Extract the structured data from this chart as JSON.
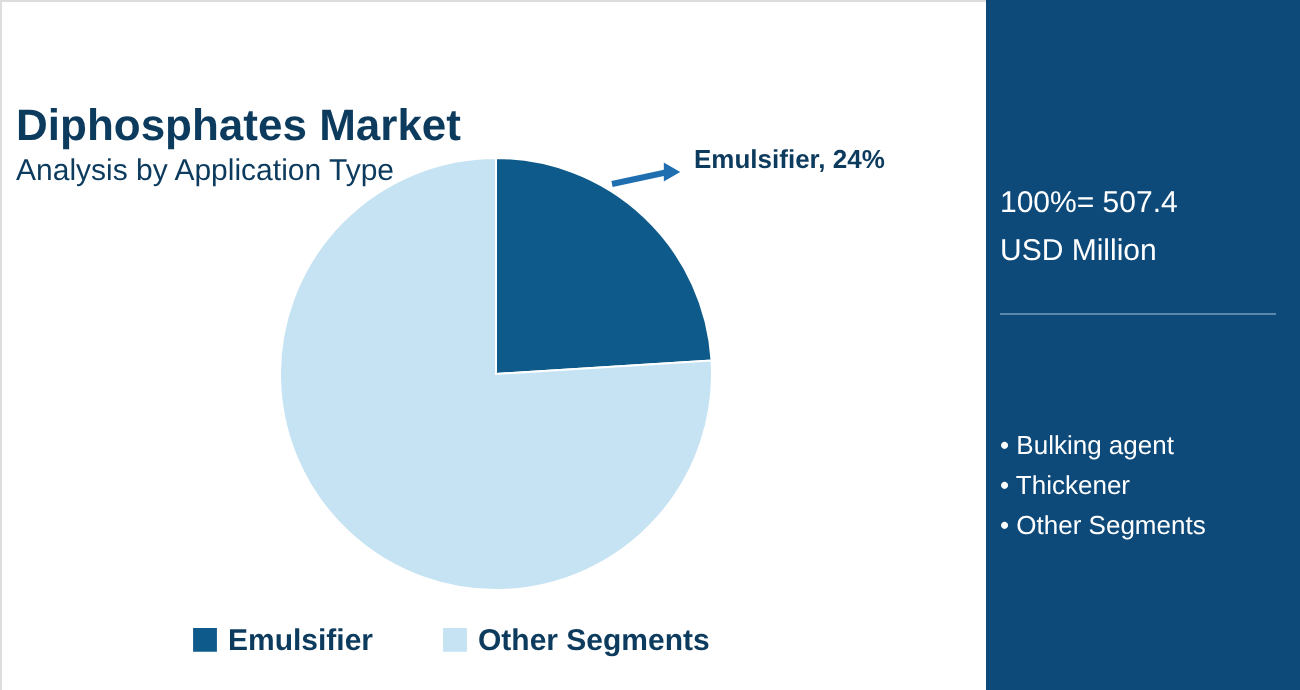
{
  "chart_data": {
    "type": "pie",
    "title": "Diphosphates Market",
    "subtitle": "Analysis by Application Type",
    "categories": [
      "Emulsifier",
      "Other Segments"
    ],
    "values": [
      24,
      76
    ],
    "colors": [
      "#0e5a8a",
      "#c5e3f3"
    ],
    "legend": "bottom",
    "annotations": [
      "Emulsifier, 24%",
      "100%= 507.4",
      "USD Million",
      "• Bulking agent",
      "• Thickener",
      "• Other Segments"
    ]
  }
}
